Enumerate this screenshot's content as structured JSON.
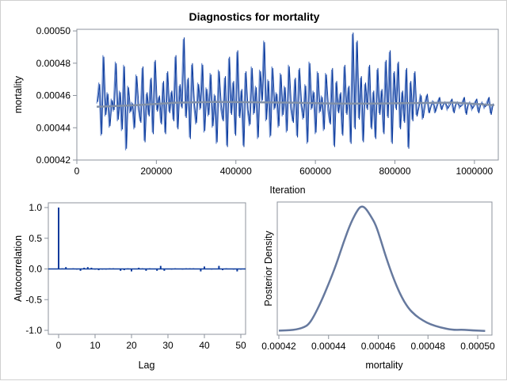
{
  "title": "Diagnostics for mortality",
  "chart_data": [
    {
      "type": "line",
      "panel": "trace",
      "xlabel": "Iteration",
      "ylabel": "mortality",
      "xlim": [
        0,
        1060000
      ],
      "ylim": [
        0.00042,
        0.000501
      ],
      "xticks": [
        "0",
        "200000",
        "400000",
        "600000",
        "800000",
        "1000000"
      ],
      "xtick_values": [
        0,
        200000,
        400000,
        600000,
        800000,
        1000000
      ],
      "yticks": [
        "0.00042",
        "0.00044",
        "0.00046",
        "0.00048",
        "0.00050"
      ],
      "ytick_values": [
        0.00042,
        0.00044,
        0.00046,
        0.00048,
        0.0005
      ],
      "x_start": 50000,
      "x_step": 5000,
      "values": [
        0.000455,
        0.000468,
        0.000435,
        0.000485,
        0.000447,
        0.000462,
        0.00044,
        0.000458,
        0.00045,
        0.000481,
        0.000444,
        0.000463,
        0.000438,
        0.000479,
        0.000426,
        0.000466,
        0.000449,
        0.000456,
        0.000439,
        0.000473,
        0.000452,
        0.000444,
        0.000477,
        0.000432,
        0.000461,
        0.000448,
        0.00047,
        0.000437,
        0.000481,
        0.000451,
        0.000459,
        0.000443,
        0.000468,
        0.000437,
        0.000474,
        0.00045,
        0.000462,
        0.000445,
        0.000484,
        0.00044,
        0.000466,
        0.000453,
        0.000495,
        0.000447,
        0.00047,
        0.000434,
        0.000479,
        0.000455,
        0.000442,
        0.000468,
        0.000451,
        0.00048,
        0.000437,
        0.000465,
        0.000447,
        0.000474,
        0.00044,
        0.000461,
        0.00043,
        0.000476,
        0.000453,
        0.000445,
        0.000471,
        0.000429,
        0.000483,
        0.000449,
        0.000468,
        0.000436,
        0.000487,
        0.000447,
        0.000463,
        0.000429,
        0.000474,
        0.000452,
        0.000441,
        0.000478,
        0.000448,
        0.000466,
        0.000433,
        0.000476,
        0.000456,
        0.000494,
        0.000444,
        0.00047,
        0.000434,
        0.000478,
        0.000451,
        0.000462,
        0.00044,
        0.000474,
        0.000447,
        0.000466,
        0.000437,
        0.000479,
        0.000452,
        0.000444,
        0.00047,
        0.000435,
        0.000476,
        0.000455,
        0.000445,
        0.000467,
        0.00043,
        0.000481,
        0.000451,
        0.000463,
        0.000436,
        0.000475,
        0.000449,
        0.00046,
        0.000438,
        0.000474,
        0.000452,
        0.000443,
        0.000476,
        0.000429,
        0.000468,
        0.00045,
        0.000461,
        0.000436,
        0.000478,
        0.000449,
        0.000465,
        0.000431,
        0.000498,
        0.00044,
        0.000493,
        0.000446,
        0.000471,
        0.000432,
        0.000467,
        0.000452,
        0.000478,
        0.00044,
        0.000462,
        0.000434,
        0.000476,
        0.000449,
        0.000463,
        0.000437,
        0.000481,
        0.000447,
        0.000487,
        0.000431,
        0.000474,
        0.000452,
        0.00048,
        0.00044,
        0.000462,
        0.000444,
        0.000476,
        0.000428,
        0.000468,
        0.000445,
        0.000474,
        0.000448,
        0.000452,
        0.000461,
        0.000445,
        0.000455,
        0.00046,
        0.00045,
        0.000453,
        0.000457,
        0.000449,
        0.000455,
        0.000458,
        0.000452,
        0.000454,
        0.000456,
        0.000451,
        0.000455,
        0.000457,
        0.00045,
        0.000454,
        0.000456,
        0.000452,
        0.000455,
        0.000458,
        0.000449,
        0.000454,
        0.000456,
        0.000451,
        0.000455,
        0.000457,
        0.00045,
        0.000454,
        0.000456,
        0.000452,
        0.000455,
        0.000458,
        0.000449,
        0.000454
      ],
      "smooth": {
        "x": [
          50000,
          150000,
          250000,
          350000,
          450000,
          550000,
          650000,
          750000,
          850000,
          950000,
          1050000
        ],
        "y": [
          0.000453,
          0.000454,
          0.0004555,
          0.000456,
          0.0004558,
          0.0004555,
          0.000455,
          0.000455,
          0.0004553,
          0.0004556,
          0.000454
        ]
      },
      "colors": {
        "trace": "#0b3a9c",
        "trace_light": "#6f8fcf",
        "smooth": "#8190a8"
      }
    },
    {
      "type": "bar",
      "panel": "autocorrelation",
      "xlabel": "Lag",
      "ylabel": "Autocorrelation",
      "xlim": [
        -1,
        51
      ],
      "ylim": [
        -1.05,
        1.05
      ],
      "xticks": [
        "0",
        "10",
        "20",
        "30",
        "40",
        "50"
      ],
      "xtick_values": [
        0,
        10,
        20,
        30,
        40,
        50
      ],
      "yticks": [
        "-1.0",
        "-0.5",
        "0.0",
        "0.5",
        "1.0"
      ],
      "ytick_values": [
        -1,
        -0.5,
        0,
        0.5,
        1
      ],
      "lags": [
        0,
        1,
        2,
        3,
        4,
        5,
        6,
        7,
        8,
        9,
        10,
        11,
        12,
        13,
        14,
        15,
        16,
        17,
        18,
        19,
        20,
        21,
        22,
        23,
        24,
        25,
        26,
        27,
        28,
        29,
        30,
        31,
        32,
        33,
        34,
        35,
        36,
        37,
        38,
        39,
        40,
        41,
        42,
        43,
        44,
        45,
        46,
        47,
        48,
        49,
        50
      ],
      "values": [
        1.0,
        0.01,
        0.03,
        0.0,
        0.01,
        -0.01,
        -0.03,
        0.02,
        0.03,
        0.02,
        -0.01,
        -0.02,
        -0.01,
        -0.01,
        0.01,
        0.01,
        0.0,
        -0.03,
        -0.02,
        0.01,
        -0.04,
        0.0,
        0.02,
        0.01,
        -0.03,
        0.01,
        0.0,
        -0.03,
        0.05,
        -0.03,
        0.0,
        -0.01,
        0.01,
        0.0,
        -0.01,
        0.01,
        0.01,
        0.01,
        0.0,
        -0.04,
        0.04,
        0.0,
        -0.01,
        0.0,
        0.05,
        -0.02,
        0.01,
        0.0,
        -0.01,
        -0.04,
        -0.01
      ],
      "color": "#0b3a9c"
    },
    {
      "type": "line",
      "panel": "density",
      "xlabel": "mortality",
      "ylabel": "Posterior Density",
      "xlim": [
        0.000419,
        0.000503
      ],
      "xticks": [
        "0.00042",
        "0.00044",
        "0.00046",
        "0.00048",
        "0.00050"
      ],
      "xtick_values": [
        0.00042,
        0.00044,
        0.00046,
        0.00048,
        0.0005
      ],
      "x": [
        0.00042,
        0.000426,
        0.00043,
        0.000432,
        0.000434,
        0.000437,
        0.00044,
        0.000443,
        0.000446,
        0.000449,
        0.000452,
        0.0004535,
        0.000455,
        0.000457,
        0.000459,
        0.000461,
        0.000463,
        0.000466,
        0.000469,
        0.000472,
        0.000475,
        0.000478,
        0.000481,
        0.000485,
        0.00049,
        0.000494,
        0.000498,
        0.000503
      ],
      "y": [
        0.01,
        0.015,
        0.035,
        0.06,
        0.12,
        0.24,
        0.38,
        0.53,
        0.71,
        0.87,
        0.98,
        1.0,
        0.98,
        0.92,
        0.85,
        0.73,
        0.6,
        0.43,
        0.29,
        0.19,
        0.13,
        0.09,
        0.06,
        0.035,
        0.015,
        0.018,
        0.012,
        0.008
      ],
      "color": "#66799e"
    }
  ]
}
